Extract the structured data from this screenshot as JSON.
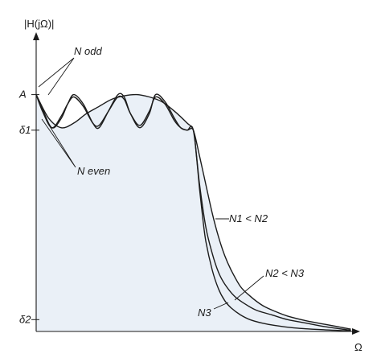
{
  "chart_data": {
    "type": "line",
    "title": "",
    "ylabel": "|H(jΩ)|",
    "xlabel": "Ω",
    "fill_color": "#eaf0f7",
    "y_ticks": [
      {
        "label": "A",
        "value": 1.0
      },
      {
        "label": "δ1",
        "value": 0.85
      },
      {
        "label": "δ2",
        "value": 0.05
      }
    ],
    "xlim": [
      0,
      1
    ],
    "ylim": [
      0,
      1.25
    ],
    "cutoff": 0.5,
    "series": [
      {
        "name": "N1",
        "x": [
          0,
          0.04,
          0.08,
          0.12,
          0.16,
          0.2,
          0.24,
          0.28,
          0.32,
          0.36,
          0.4,
          0.44,
          0.48,
          0.5,
          0.52,
          0.54,
          0.56,
          0.58,
          0.6,
          0.62,
          0.65,
          0.68,
          0.72,
          0.76,
          0.8,
          0.86,
          0.92,
          1.0
        ],
        "y": [
          1.0,
          0.9,
          0.86,
          0.88,
          0.92,
          0.95,
          0.98,
          0.995,
          1.0,
          0.99,
          0.97,
          0.93,
          0.88,
          0.85,
          0.74,
          0.62,
          0.5,
          0.4,
          0.32,
          0.26,
          0.19,
          0.15,
          0.11,
          0.085,
          0.065,
          0.045,
          0.03,
          0.01
        ]
      },
      {
        "name": "N2",
        "x": [
          0,
          0.02,
          0.05,
          0.08,
          0.1,
          0.12,
          0.15,
          0.18,
          0.2,
          0.23,
          0.26,
          0.28,
          0.3,
          0.33,
          0.36,
          0.38,
          0.41,
          0.44,
          0.46,
          0.48,
          0.5,
          0.52,
          0.54,
          0.56,
          0.58,
          0.6,
          0.63,
          0.66,
          0.7,
          0.75,
          0.8,
          0.86,
          0.92,
          1.0
        ],
        "y": [
          1.0,
          0.94,
          0.86,
          0.9,
          0.96,
          1.0,
          0.96,
          0.88,
          0.86,
          0.93,
          1.0,
          0.99,
          0.92,
          0.86,
          0.92,
          1.0,
          0.97,
          0.9,
          0.86,
          0.85,
          0.85,
          0.62,
          0.44,
          0.33,
          0.25,
          0.2,
          0.15,
          0.12,
          0.09,
          0.07,
          0.05,
          0.035,
          0.02,
          0.005
        ]
      },
      {
        "name": "N3",
        "x": [
          0,
          0.02,
          0.05,
          0.08,
          0.1,
          0.12,
          0.15,
          0.18,
          0.2,
          0.23,
          0.26,
          0.28,
          0.3,
          0.33,
          0.36,
          0.38,
          0.41,
          0.44,
          0.46,
          0.48,
          0.5,
          0.51,
          0.52,
          0.53,
          0.54,
          0.56,
          0.58,
          0.6,
          0.62,
          0.65,
          0.68,
          0.72,
          0.76,
          0.82,
          0.9,
          1.0
        ],
        "y": [
          1.0,
          0.93,
          0.86,
          0.91,
          0.96,
          0.99,
          0.95,
          0.88,
          0.87,
          0.93,
          0.99,
          0.98,
          0.92,
          0.87,
          0.93,
          0.99,
          0.96,
          0.89,
          0.86,
          0.85,
          0.85,
          0.74,
          0.6,
          0.48,
          0.38,
          0.26,
          0.18,
          0.13,
          0.1,
          0.07,
          0.05,
          0.035,
          0.025,
          0.015,
          0.008,
          0.002
        ]
      }
    ],
    "annotations": [
      {
        "text": "N odd",
        "italic_prefix": "N",
        "suffix": " odd"
      },
      {
        "text": "N even",
        "italic_prefix": "N",
        "suffix": " even"
      },
      {
        "text": "N1 < N2"
      },
      {
        "text": "N2 < N3"
      },
      {
        "text": "N3"
      }
    ]
  }
}
